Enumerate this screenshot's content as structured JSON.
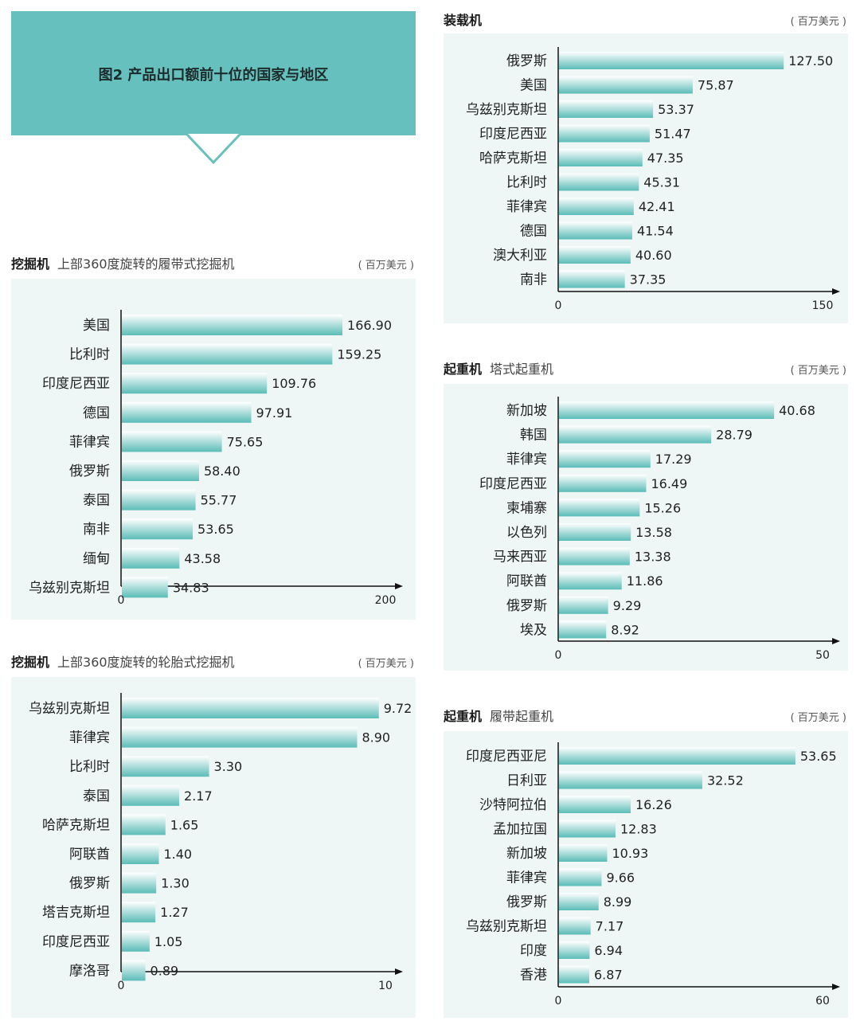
{
  "figure_title": "图2 产品出口额前十位的国家与地区",
  "colors": {
    "banner": "#66c0bd",
    "bar_light": "#ffffff",
    "bar_dark": "#5bbcb7",
    "panel": "#eef6f6"
  },
  "chart_data": [
    {
      "id": "crawler-excavator",
      "type": "bar",
      "orientation": "horizontal",
      "title": "挖掘机",
      "subtitle": "上部360度旋转的履带式挖掘机",
      "unit": "( 百万美元 )",
      "categories": [
        "美国",
        "比利时",
        "印度尼西亚",
        "德国",
        "菲律宾",
        "俄罗斯",
        "泰国",
        "南非",
        "缅甸",
        "乌兹别克斯坦"
      ],
      "values": [
        166.9,
        159.25,
        109.76,
        97.91,
        75.65,
        58.4,
        55.77,
        53.65,
        43.58,
        34.83
      ],
      "labels": [
        "166.90",
        "159.25",
        "109.76",
        "97.91",
        "75.65",
        "58.40",
        "55.77",
        "53.65",
        "43.58",
        "34.83"
      ],
      "xlim": [
        0,
        200
      ],
      "ticks": [
        "0",
        "200"
      ]
    },
    {
      "id": "wheel-excavator",
      "type": "bar",
      "orientation": "horizontal",
      "title": "挖掘机",
      "subtitle": "上部360度旋转的轮胎式挖掘机",
      "unit": "( 百万美元 )",
      "categories": [
        "乌兹别克斯坦",
        "菲律宾",
        "比利时",
        "泰国",
        "哈萨克斯坦",
        "阿联酋",
        "俄罗斯",
        "塔吉克斯坦",
        "印度尼西亚",
        "摩洛哥"
      ],
      "values": [
        9.72,
        8.9,
        3.3,
        2.17,
        1.65,
        1.4,
        1.3,
        1.27,
        1.05,
        0.89
      ],
      "labels": [
        "9.72",
        "8.90",
        "3.30",
        "2.17",
        "1.65",
        "1.40",
        "1.30",
        "1.27",
        "1.05",
        "0.89"
      ],
      "xlim": [
        0,
        10
      ],
      "ticks": [
        "0",
        "10"
      ]
    },
    {
      "id": "loader",
      "type": "bar",
      "orientation": "horizontal",
      "title": "装载机",
      "subtitle": "",
      "unit": "( 百万美元 )",
      "categories": [
        "俄罗斯",
        "美国",
        "乌兹别克斯坦",
        "印度尼西亚",
        "哈萨克斯坦",
        "比利时",
        "菲律宾",
        "德国",
        "澳大利亚",
        "南非"
      ],
      "values": [
        127.5,
        75.87,
        53.37,
        51.47,
        47.35,
        45.31,
        42.41,
        41.54,
        40.6,
        37.35
      ],
      "labels": [
        "127.50",
        "75.87",
        "53.37",
        "51.47",
        "47.35",
        "45.31",
        "42.41",
        "41.54",
        "40.60",
        "37.35"
      ],
      "xlim": [
        0,
        150
      ],
      "ticks": [
        "0",
        "150"
      ]
    },
    {
      "id": "tower-crane",
      "type": "bar",
      "orientation": "horizontal",
      "title": "起重机",
      "subtitle": "塔式起重机",
      "unit": "( 百万美元 )",
      "categories": [
        "新加坡",
        "韩国",
        "菲律宾",
        "印度尼西亚",
        "柬埔寨",
        "以色列",
        "马来西亚",
        "阿联酋",
        "俄罗斯",
        "埃及"
      ],
      "values": [
        40.68,
        28.79,
        17.29,
        16.49,
        15.26,
        13.58,
        13.38,
        11.86,
        9.29,
        8.92
      ],
      "labels": [
        "40.68",
        "28.79",
        "17.29",
        "16.49",
        "15.26",
        "13.58",
        "13.38",
        "11.86",
        "9.29",
        "8.92"
      ],
      "xlim": [
        0,
        50
      ],
      "ticks": [
        "0",
        "50"
      ]
    },
    {
      "id": "crawler-crane",
      "type": "bar",
      "orientation": "horizontal",
      "title": "起重机",
      "subtitle": "履带起重机",
      "unit": "( 百万美元 )",
      "categories": [
        "印度尼西亚尼",
        "日利亚",
        "沙特阿拉伯",
        "孟加拉国",
        "新加坡",
        "菲律宾",
        "俄罗斯",
        "乌兹别克斯坦",
        "印度",
        "香港"
      ],
      "values": [
        53.65,
        32.52,
        16.26,
        12.83,
        10.93,
        9.66,
        8.99,
        7.17,
        6.94,
        6.87
      ],
      "labels": [
        "53.65",
        "32.52",
        "16.26",
        "12.83",
        "10.93",
        "9.66",
        "8.99",
        "7.17",
        "6.94",
        "6.87"
      ],
      "xlim": [
        0,
        60
      ],
      "ticks": [
        "0",
        "60"
      ]
    }
  ]
}
